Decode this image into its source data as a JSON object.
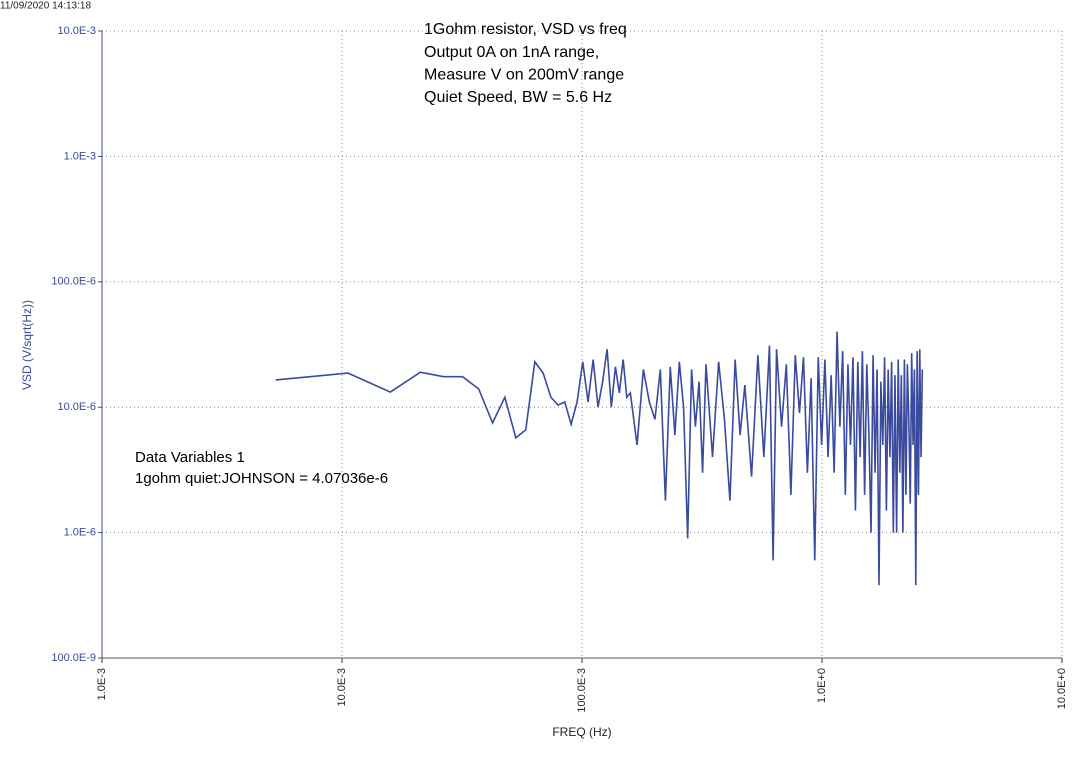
{
  "timestamp": "11/09/2020 14:13:18",
  "chart_data": {
    "type": "line",
    "title_lines": [
      "1Gohm resistor, VSD vs freq",
      "Output 0A on 1nA range,",
      "Measure V on 200mV range",
      "Quiet Speed, BW = 5.6 Hz"
    ],
    "annotations": [
      "Data Variables 1",
      "1gohm quiet:JOHNSON = 4.07036e-6"
    ],
    "xlabel": "FREQ (Hz)",
    "ylabel": "VSD (V/sqrt(Hz))",
    "xscale": "log",
    "yscale": "log",
    "grid": true,
    "xlim": [
      0.001,
      10
    ],
    "ylim": [
      1e-07,
      0.01
    ],
    "xticks": [
      {
        "value": 0.001,
        "label": "1.0E-3"
      },
      {
        "value": 0.01,
        "label": "10.0E-3"
      },
      {
        "value": 0.1,
        "label": "100.0E-3"
      },
      {
        "value": 1,
        "label": "1.0E+0"
      },
      {
        "value": 10,
        "label": "10.0E+0"
      }
    ],
    "yticks": [
      {
        "value": 1e-07,
        "label": "100.0E-9"
      },
      {
        "value": 1e-06,
        "label": "1.0E-6"
      },
      {
        "value": 1e-05,
        "label": "10.0E-6"
      },
      {
        "value": 0.0001,
        "label": "100.0E-6"
      },
      {
        "value": 0.001,
        "label": "1.0E-3"
      },
      {
        "value": 0.01,
        "label": "10.0E-3"
      }
    ],
    "x": [
      0.0053,
      0.0106,
      0.0159,
      0.0212,
      0.0265,
      0.0318,
      0.0371,
      0.0424,
      0.0477,
      0.053,
      0.0583,
      0.0636,
      0.0689,
      0.0742,
      0.0795,
      0.0848,
      0.0901,
      0.0954,
      0.1007,
      0.106,
      0.1113,
      0.1166,
      0.1219,
      0.1272,
      0.1325,
      0.1378,
      0.1431,
      0.1484,
      0.1537,
      0.159,
      0.1696,
      0.1802,
      0.1908,
      0.2014,
      0.212,
      0.2226,
      0.2332,
      0.2438,
      0.2544,
      0.265,
      0.2756,
      0.2862,
      0.2968,
      0.3074,
      0.318,
      0.3286,
      0.3498,
      0.371,
      0.3922,
      0.4134,
      0.4346,
      0.4558,
      0.477,
      0.5088,
      0.5406,
      0.5724,
      0.6042,
      0.6254,
      0.6466,
      0.6784,
      0.7102,
      0.742,
      0.7738,
      0.8056,
      0.8374,
      0.8692,
      0.901,
      0.9328,
      0.9646,
      0.9964,
      1.0282,
      1.06,
      1.0918,
      1.1236,
      1.1554,
      1.1872,
      1.219,
      1.2508,
      1.2826,
      1.3144,
      1.3462,
      1.378,
      1.4098,
      1.4416,
      1.4734,
      1.5052,
      1.537,
      1.5688,
      1.6006,
      1.6324,
      1.6642,
      1.696,
      1.7278,
      1.7596,
      1.7914,
      1.8232,
      1.855,
      1.8868,
      1.9186,
      1.9504,
      1.9822,
      2.014,
      2.0458,
      2.0776,
      2.1094,
      2.1412,
      2.173,
      2.2048,
      2.2366,
      2.2684,
      2.3002,
      2.332,
      2.3638,
      2.3956,
      2.4274,
      2.4592,
      2.491,
      2.5228,
      2.5546,
      2.5864,
      2.618
    ],
    "series": [
      {
        "color": "#3a4a9c",
        "values": [
          1.65e-05,
          1.87e-05,
          1.32e-05,
          1.9e-05,
          1.75e-05,
          1.75e-05,
          1.4e-05,
          7.5e-06,
          1.2e-05,
          5.7e-06,
          6.6e-06,
          2.3e-05,
          1.87e-05,
          1.2e-05,
          1.04e-05,
          1.1e-05,
          7.3e-06,
          1.1e-05,
          2.3e-05,
          1.1e-05,
          2.4e-05,
          1e-05,
          1.6e-05,
          2.9e-05,
          1e-05,
          2.1e-05,
          1.3e-05,
          2.4e-05,
          1.2e-05,
          1.3e-05,
          5e-06,
          2e-05,
          1.1e-05,
          8e-06,
          2e-05,
          1.8e-06,
          2.1e-05,
          6e-06,
          2.3e-05,
          1e-05,
          9e-07,
          2e-05,
          7e-06,
          1.6e-05,
          3e-06,
          2.2e-05,
          4e-06,
          2.3e-05,
          8e-06,
          1.8e-06,
          2.4e-05,
          6e-06,
          1.5e-05,
          2.8e-06,
          2.6e-05,
          4e-06,
          3.1e-05,
          6e-07,
          2.9e-05,
          7e-06,
          2.2e-05,
          2e-06,
          2.6e-05,
          9e-06,
          2.5e-05,
          3e-06,
          1.7e-05,
          6e-07,
          2.5e-05,
          5e-06,
          2.4e-05,
          4e-06,
          1.8e-05,
          3e-06,
          4e-05,
          7e-06,
          2.8e-05,
          2e-06,
          2.2e-05,
          5e-06,
          2.5e-05,
          1.5e-06,
          2.3e-05,
          4e-06,
          2.8e-05,
          2e-06,
          2.2e-05,
          6e-06,
          1e-06,
          2.6e-05,
          3e-06,
          2e-05,
          3.8e-07,
          1.6e-05,
          5e-06,
          2.5e-05,
          1.5e-06,
          2e-05,
          4e-06,
          2.3e-05,
          1e-06,
          1.8e-05,
          1e-06,
          2.4e-05,
          3e-06,
          1.8e-05,
          1e-06,
          2.4e-05,
          2e-06,
          2.2e-05,
          8e-06,
          1.7e-06,
          2.7e-05,
          5e-06,
          2e-05,
          3.8e-07,
          2.8e-05,
          2e-06,
          2.9e-05,
          4e-06,
          2e-05
        ]
      }
    ]
  }
}
